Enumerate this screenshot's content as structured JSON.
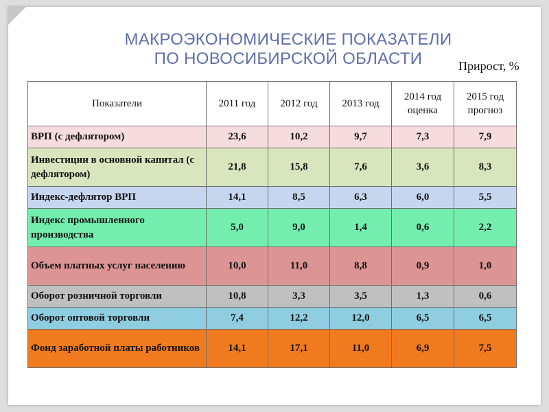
{
  "title": {
    "line1": "МАКРОЭКОНОМИЧЕСКИЕ ПОКАЗАТЕЛИ",
    "line2": "ПО НОВОСИБИРСКОЙ ОБЛАСТИ"
  },
  "unit_label": "Прирост, %",
  "table": {
    "headers": [
      "Показатели",
      "2011 год",
      "2012 год",
      "2013 год",
      "2014 год оценка",
      "2015 год прогноз"
    ],
    "rows": [
      {
        "name": "ВРП (с дефлятором)",
        "values": [
          "23,6",
          "10,2",
          "9,7",
          "7,3",
          "7,9"
        ],
        "color": "#f6dcdc"
      },
      {
        "name": "Инвестиции в основной капитал (с дефлятором)",
        "values": [
          "21,8",
          "15,8",
          "7,6",
          "3,6",
          "8,3"
        ],
        "color": "#d8e5bd"
      },
      {
        "name": "Индекс-дефлятор ВРП",
        "values": [
          "14,1",
          "8,5",
          "6,3",
          "6,0",
          "5,5"
        ],
        "color": "#c6d6ef"
      },
      {
        "name": "Индекс промышленного производства",
        "values": [
          "5,0",
          "9,0",
          "1,4",
          "0,6",
          "2,2"
        ],
        "color": "#74eeaf"
      },
      {
        "name": "Объем платных услуг населению",
        "values": [
          "10,0",
          "11,0",
          "8,8",
          "0,9",
          "1,0"
        ],
        "color": "#dd9494"
      },
      {
        "name": "Оборот розничной торговли",
        "values": [
          "10,8",
          "3,3",
          "3,5",
          "1,3",
          "0,6"
        ],
        "color": "#c0c0c0"
      },
      {
        "name": "Оборот оптовой торговли",
        "values": [
          "7,4",
          "12,2",
          "12,0",
          "6,5",
          "6,5"
        ],
        "color": "#8fcde0"
      },
      {
        "name": "Фонд заработной платы работников",
        "values": [
          "14,1",
          "17,1",
          "11,0",
          "6,9",
          "7,5"
        ],
        "color": "#f07b1f"
      }
    ]
  }
}
